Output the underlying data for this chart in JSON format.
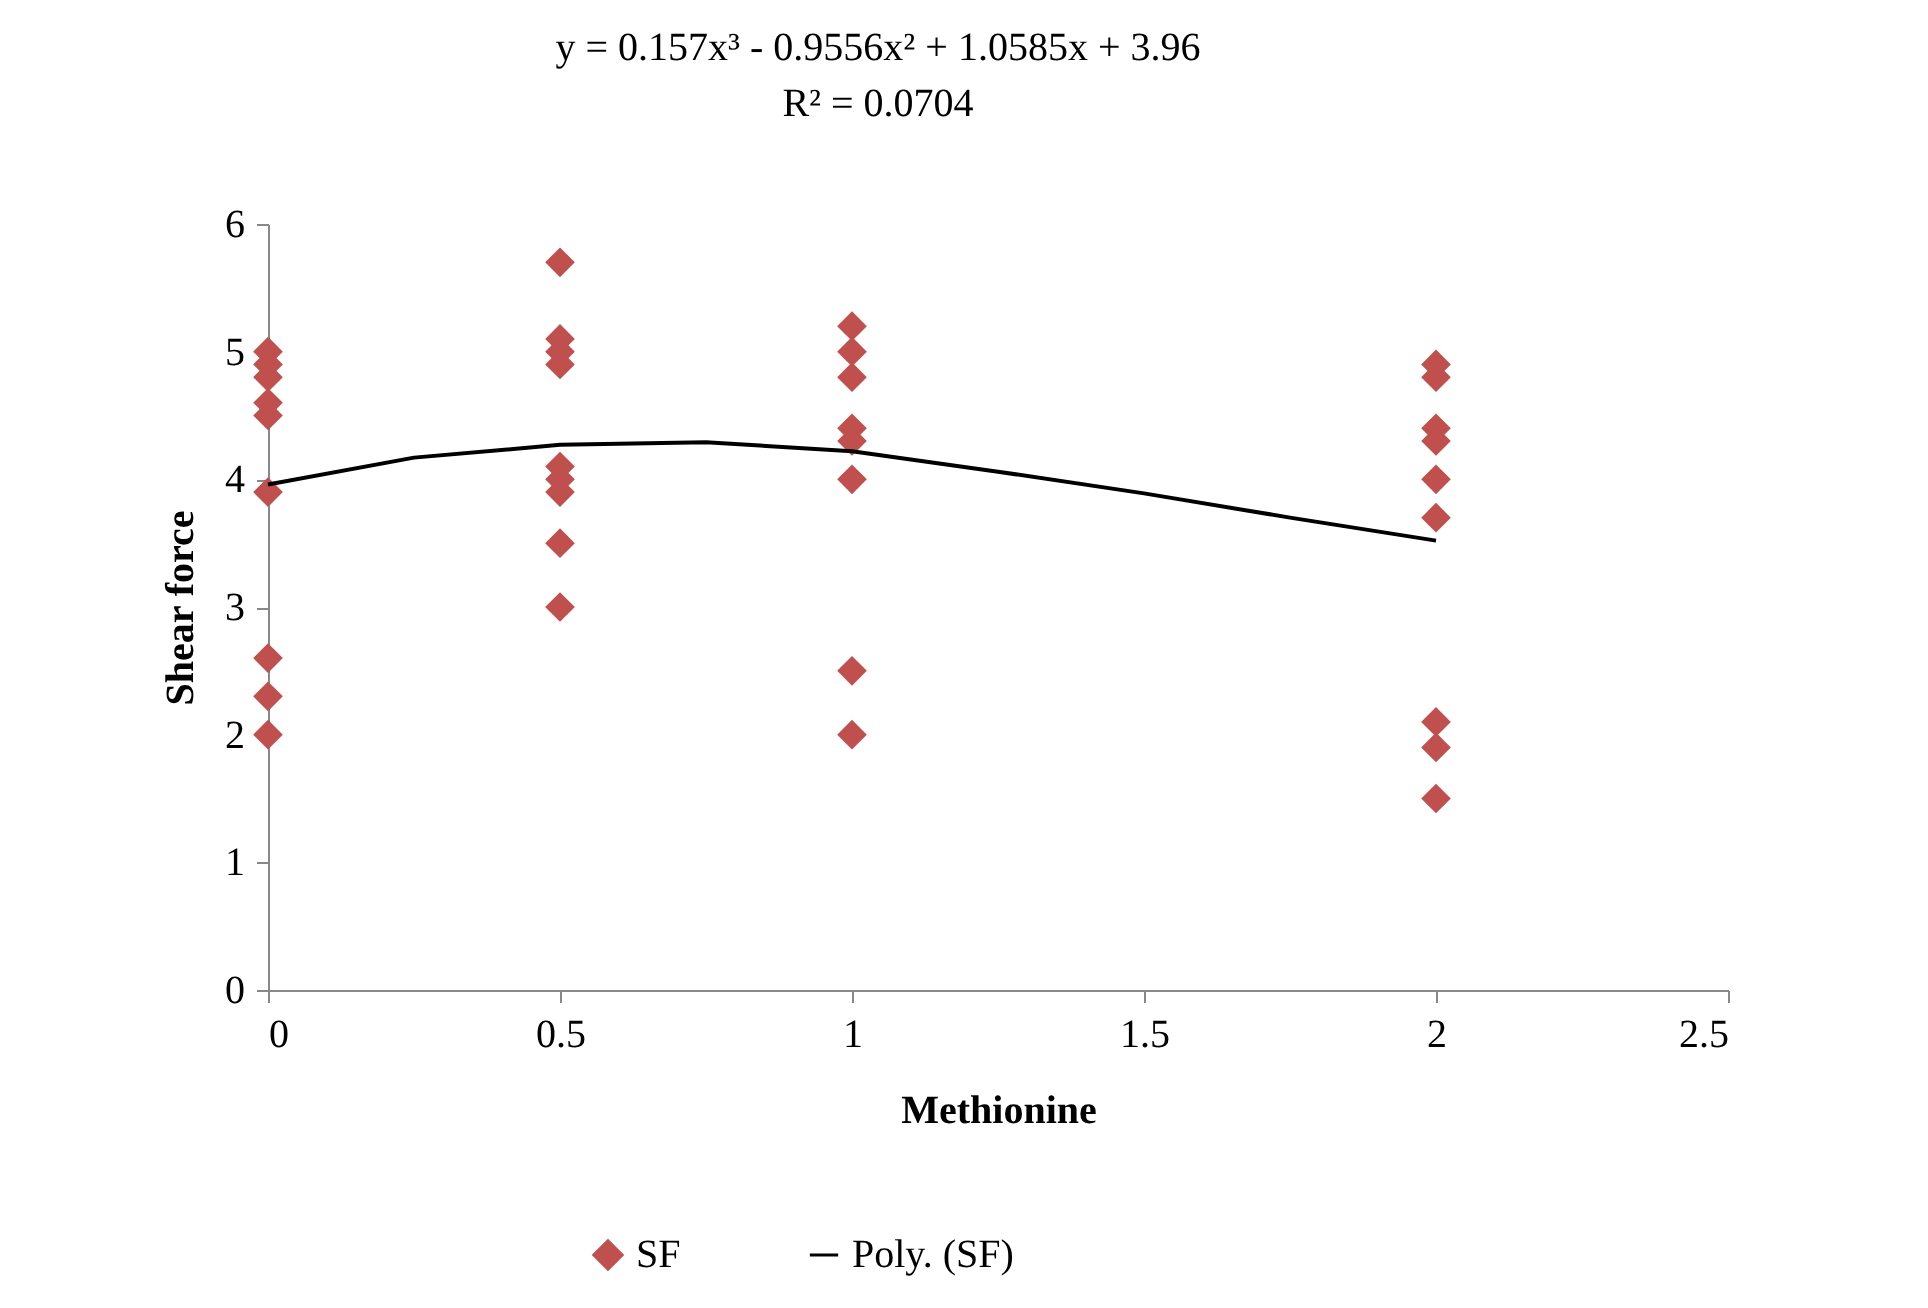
{
  "chart_data": {
    "type": "scatter",
    "annotations": [
      "y = 0.157x³ - 0.9556x² + 1.0585x + 3.96",
      "R² = 0.0704"
    ],
    "xlabel": "Methionine",
    "ylabel": "Shear force",
    "xlim": [
      0,
      2.5
    ],
    "xticks": [
      0,
      0.5,
      1,
      1.5,
      2,
      2.5
    ],
    "ylim": [
      0,
      6
    ],
    "yticks": [
      0,
      1,
      2,
      3,
      4,
      5,
      6
    ],
    "line_style": "solid",
    "legend": "bottom",
    "series": [
      {
        "name": "SF",
        "marker": "diamond",
        "color": "#c0504d",
        "x": [
          0,
          0,
          0,
          0,
          0,
          0,
          0,
          0,
          0,
          0.5,
          0.5,
          0.5,
          0.5,
          0.5,
          0.5,
          0.5,
          0.5,
          0.5,
          1,
          1,
          1,
          1,
          1,
          1,
          1,
          1,
          2,
          2,
          2,
          2,
          2,
          2,
          2,
          2,
          2
        ],
        "values": [
          5.0,
          4.9,
          4.8,
          4.6,
          4.5,
          3.9,
          2.6,
          2.3,
          2.0,
          5.7,
          5.1,
          5.0,
          4.9,
          4.1,
          4.0,
          3.9,
          3.5,
          3.0,
          5.2,
          5.0,
          4.8,
          4.4,
          4.3,
          4.0,
          2.5,
          2.0,
          4.9,
          4.8,
          4.4,
          4.3,
          4.0,
          3.7,
          2.1,
          1.9,
          1.5
        ]
      },
      {
        "name": "Poly. (SF)",
        "type": "line",
        "color": "#000000",
        "x": [
          0,
          0.25,
          0.5,
          0.75,
          1,
          1.25,
          1.5,
          1.75,
          2
        ],
        "values": [
          3.96,
          4.17,
          4.27,
          4.29,
          4.22,
          4.06,
          3.89,
          3.7,
          3.52
        ]
      }
    ]
  }
}
